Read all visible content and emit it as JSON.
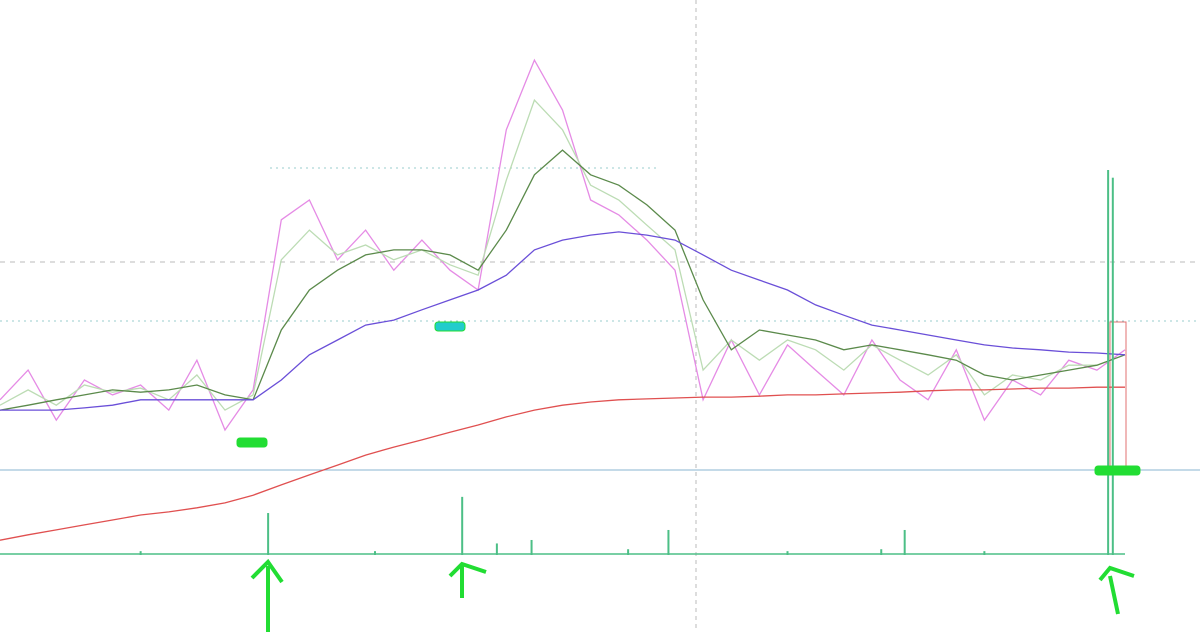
{
  "chart_data": [
    {
      "type": "line",
      "x": [
        0,
        3,
        6,
        9,
        12,
        15,
        18,
        21,
        24,
        27,
        30,
        33,
        36,
        39,
        42,
        45,
        48,
        51,
        54,
        57,
        60,
        63,
        66,
        69,
        72,
        75,
        78,
        81,
        84,
        87,
        90,
        93,
        96,
        99,
        102,
        105,
        108,
        111,
        114,
        117,
        120
      ],
      "xlim": [
        0,
        120
      ],
      "ylim": [
        -20,
        100
      ],
      "series": [
        {
          "color": "#e58be5",
          "values": [
            15.6,
            22.2,
            11.1,
            20,
            16.7,
            18.9,
            13.3,
            24.4,
            8.9,
            17.8,
            55.6,
            60,
            46.7,
            53.3,
            44.4,
            51.1,
            44.4,
            40,
            75.6,
            91.1,
            80,
            60,
            56.7,
            51.1,
            44.4,
            15.6,
            28.9,
            16.7,
            27.8,
            22.2,
            16.7,
            28.9,
            20,
            15.6,
            26.7,
            11.1,
            20,
            16.7,
            24.4,
            22.2,
            26.7
          ]
        },
        {
          "color": "#bcdcb4",
          "values": [
            14.4,
            17.8,
            14.4,
            18.9,
            17.3,
            18.2,
            15.6,
            21.1,
            13.3,
            16.7,
            46.7,
            53.3,
            47.8,
            50,
            46.7,
            48.9,
            45.6,
            43.3,
            64.4,
            82.2,
            75.6,
            63.3,
            60,
            54.4,
            48.9,
            22.2,
            28.9,
            24.4,
            28.9,
            26.7,
            22.2,
            27.8,
            24.4,
            21.1,
            25.6,
            16.7,
            21.1,
            20,
            23.3,
            23.3,
            25.6
          ]
        },
        {
          "color": "#5b8a4b",
          "values": [
            13.3,
            14.4,
            15.6,
            16.7,
            17.8,
            17.3,
            17.8,
            18.9,
            16.7,
            15.6,
            31.1,
            40,
            44.4,
            47.8,
            48.9,
            48.9,
            47.8,
            44.4,
            53.3,
            65.6,
            71.1,
            65.6,
            63.3,
            58.9,
            53.3,
            37.8,
            26.7,
            31.1,
            30,
            28.9,
            26.7,
            27.8,
            26.7,
            25.6,
            24.4,
            21.1,
            20,
            21.1,
            22.2,
            23.3,
            25.6
          ]
        },
        {
          "color": "#6a4fd8",
          "values": [
            13.3,
            13.3,
            13.3,
            13.8,
            14.4,
            15.6,
            15.6,
            15.6,
            15.6,
            15.6,
            20,
            25.6,
            28.9,
            32.2,
            33.3,
            35.6,
            37.8,
            40,
            43.3,
            48.9,
            51.1,
            52.2,
            52.9,
            52.2,
            51.1,
            47.8,
            44.4,
            42.2,
            40,
            36.7,
            34.4,
            32.2,
            31.1,
            30,
            28.9,
            27.8,
            27.1,
            26.7,
            26.2,
            26,
            25.6
          ]
        },
        {
          "color": "#e05050",
          "values": [
            -15.6,
            -14.4,
            -13.3,
            -12.2,
            -11.1,
            -10,
            -9.3,
            -8.4,
            -7.3,
            -5.6,
            -3.3,
            -1.1,
            1.1,
            3.3,
            5.1,
            6.7,
            8.4,
            10,
            11.8,
            13.3,
            14.4,
            15.1,
            15.6,
            15.8,
            16,
            16.2,
            16.2,
            16.4,
            16.7,
            16.7,
            16.9,
            17.1,
            17.3,
            17.6,
            17.8,
            17.8,
            18,
            18.2,
            18.2,
            18.4,
            18.4
          ]
        }
      ]
    },
    {
      "type": "bar",
      "x": [
        15,
        28.6,
        40,
        49.3,
        53,
        56.7,
        67,
        71.3,
        84,
        94,
        96.5,
        105,
        118.2,
        118.7
      ],
      "values": [
        1,
        10.9,
        1,
        15.1,
        3,
        3.9,
        1.5,
        6.5,
        1,
        1.5,
        6.5,
        1,
        100,
        98
      ],
      "color": "#4cbf86",
      "xlim": [
        0,
        120
      ],
      "ylim": [
        0,
        100
      ]
    }
  ]
}
